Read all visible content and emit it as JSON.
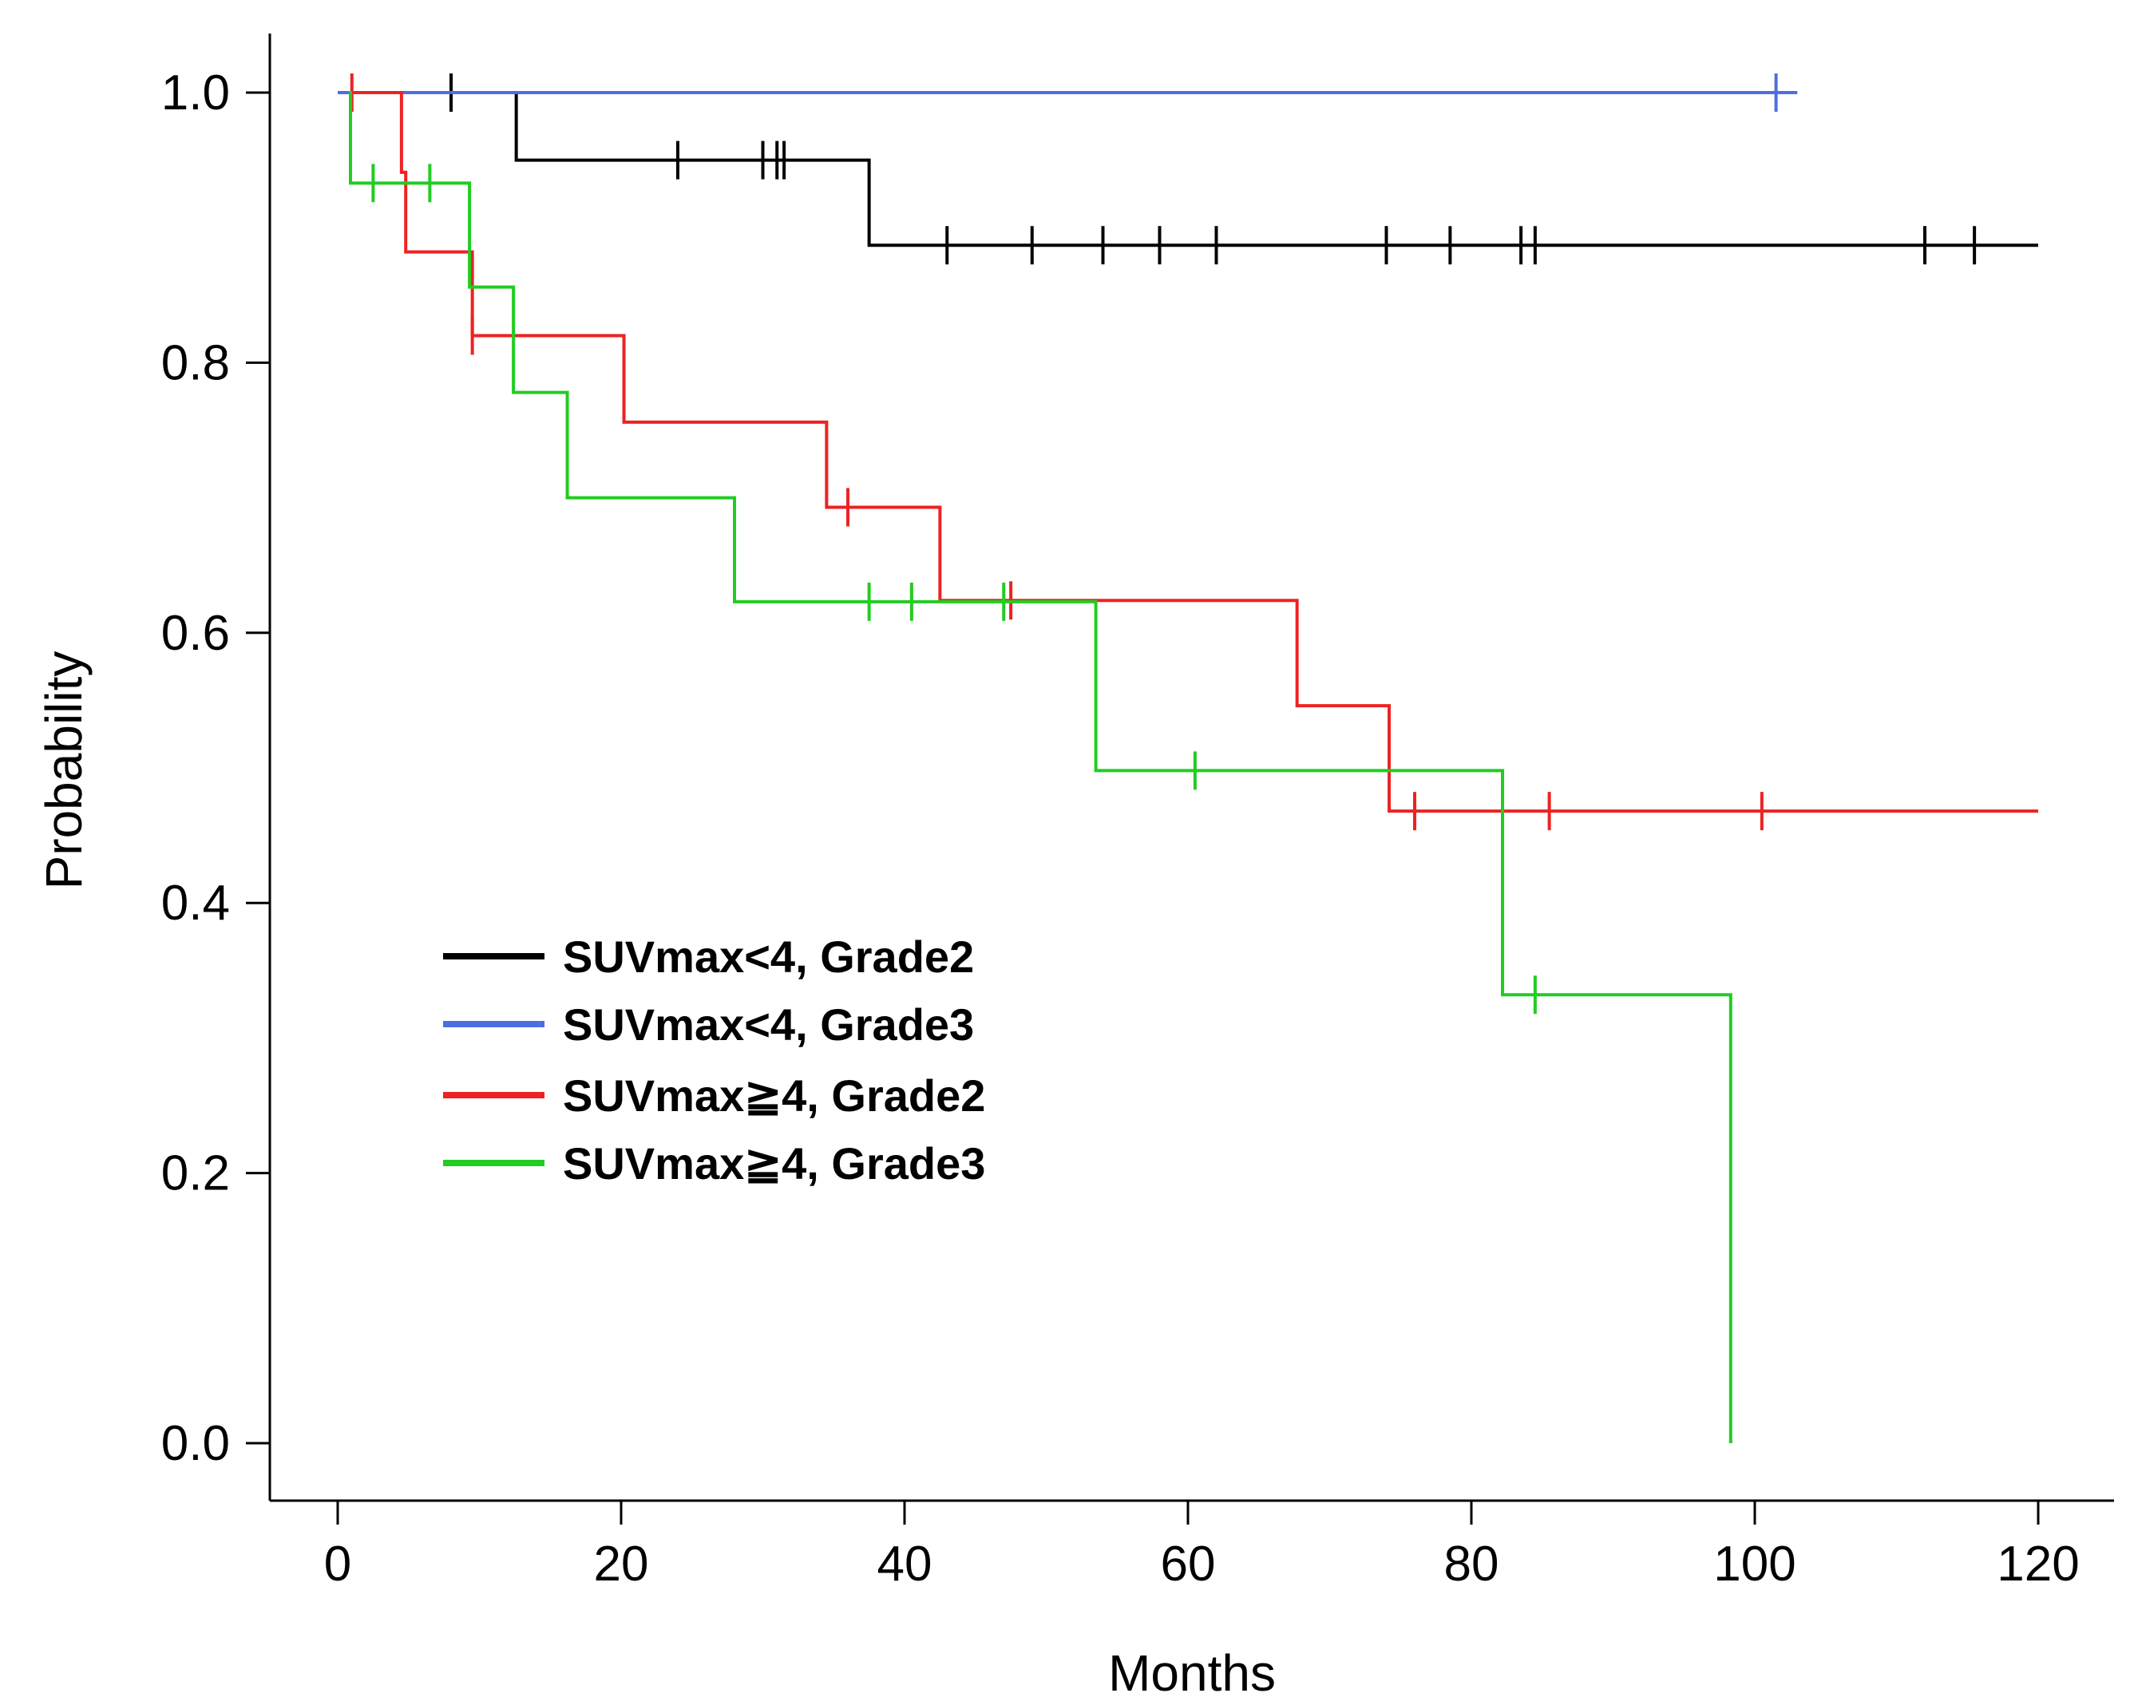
{
  "chart_data": {
    "type": "line",
    "subtype": "kaplan-meier",
    "title": "",
    "xlabel": "Months",
    "ylabel": "Probability",
    "xlim": [
      0,
      120
    ],
    "ylim": [
      0,
      1
    ],
    "x_ticks": [
      "0",
      "20",
      "40",
      "60",
      "80",
      "100",
      "120"
    ],
    "y_ticks": [
      "0.0",
      "0.2",
      "0.4",
      "0.6",
      "0.8",
      "1.0"
    ],
    "x_tick_values": [
      0,
      20,
      40,
      60,
      80,
      100,
      120
    ],
    "y_tick_values": [
      0,
      0.2,
      0.4,
      0.6,
      0.8,
      1.0
    ],
    "legend_position": "center-left",
    "series": [
      {
        "name": "SUVmax<4, Grade2",
        "color": "#000000",
        "steps": [
          [
            0,
            1.0
          ],
          [
            12.6,
            0.95
          ],
          [
            37.5,
            0.887
          ]
        ],
        "end": 120,
        "censors": [
          8,
          24,
          30,
          31,
          31.5,
          43,
          49,
          54,
          58,
          62,
          74,
          78.5,
          83.5,
          84.5,
          112,
          115.5
        ]
      },
      {
        "name": "SUVmax<4, Grade3",
        "color": "#4a6fe0",
        "steps": [
          [
            0,
            1.0
          ]
        ],
        "end": 103,
        "censors": [
          101.5
        ]
      },
      {
        "name": "SUVmax≧4, Grade2",
        "color": "#ee2222",
        "steps": [
          [
            1,
            1.0
          ],
          [
            4.5,
            0.941
          ],
          [
            4.8,
            0.882
          ],
          [
            9.5,
            0.82
          ],
          [
            20.2,
            0.756
          ],
          [
            34.5,
            0.693
          ],
          [
            42.5,
            0.624
          ],
          [
            67.7,
            0.546
          ],
          [
            74.2,
            0.468
          ]
        ],
        "end": 120,
        "censors": [
          1,
          9.5,
          36,
          47.5,
          76,
          85.5,
          100.5
        ]
      },
      {
        "name": "SUVmax≧4, Grade3",
        "color": "#22cc22",
        "steps": [
          [
            0.8,
            1.0
          ],
          [
            0.9,
            0.933
          ],
          [
            9.3,
            0.856
          ],
          [
            12.4,
            0.778
          ],
          [
            16.2,
            0.7
          ],
          [
            28,
            0.623
          ],
          [
            53.5,
            0.498
          ],
          [
            82.2,
            0.332
          ],
          [
            98.3,
            0.0
          ]
        ],
        "end": 98.3,
        "censors": [
          2.5,
          6.5,
          37.5,
          40.5,
          47,
          60.5,
          84.5
        ]
      }
    ]
  }
}
